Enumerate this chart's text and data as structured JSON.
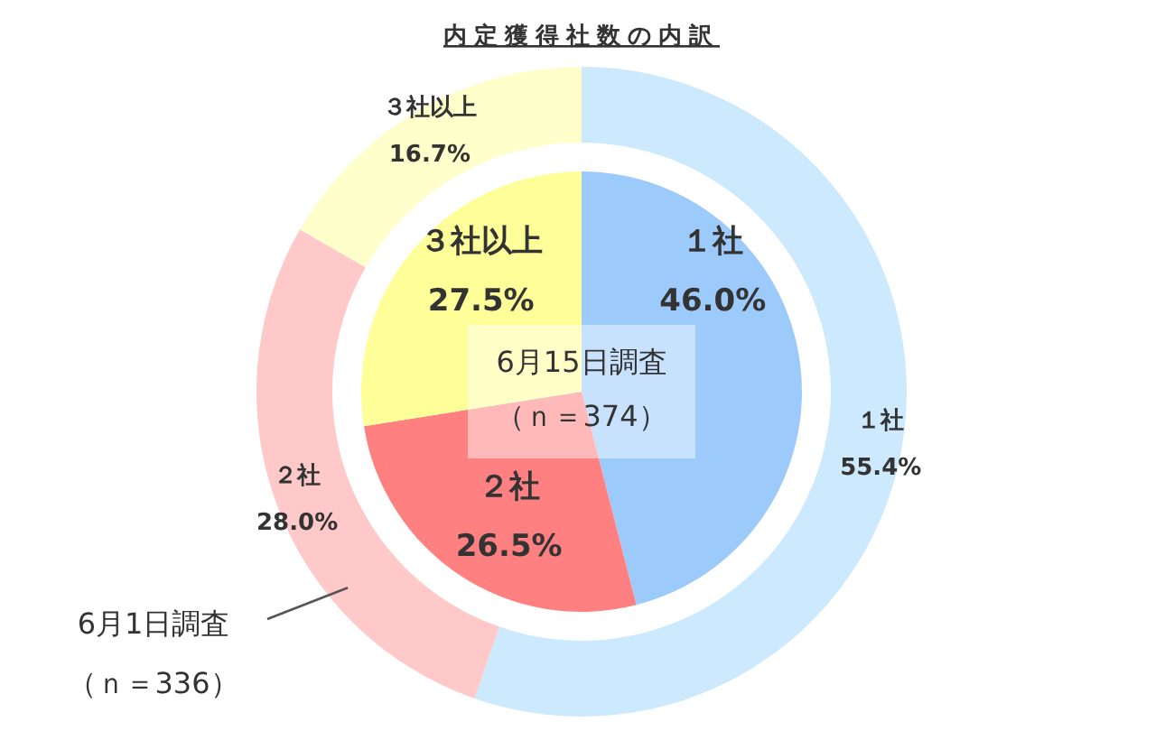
{
  "chart_data": [
    {
      "type": "pie",
      "title": "内定獲得社数の内訳",
      "categories": [
        "１社",
        "２社",
        "３社以上"
      ],
      "values": [
        46.0,
        26.5,
        27.5
      ],
      "colors": [
        "#9ccbfb",
        "#ff8080",
        "#ffff99"
      ],
      "value_labels": [
        "46.0%",
        "26.5%",
        "27.5%"
      ],
      "annotations": [
        "6月15日調査",
        "（ｎ＝374）"
      ]
    },
    {
      "type": "donut",
      "categories": [
        "１社",
        "２社",
        "３社以上"
      ],
      "values": [
        55.4,
        28.0,
        16.7
      ],
      "colors": [
        "#cde9fd",
        "#ffc9c9",
        "#ffffcc"
      ],
      "value_labels": [
        "55.4%",
        "28.0%",
        "16.7%"
      ],
      "annotations": [
        "6月1日調査",
        "（ｎ＝336）"
      ]
    }
  ]
}
